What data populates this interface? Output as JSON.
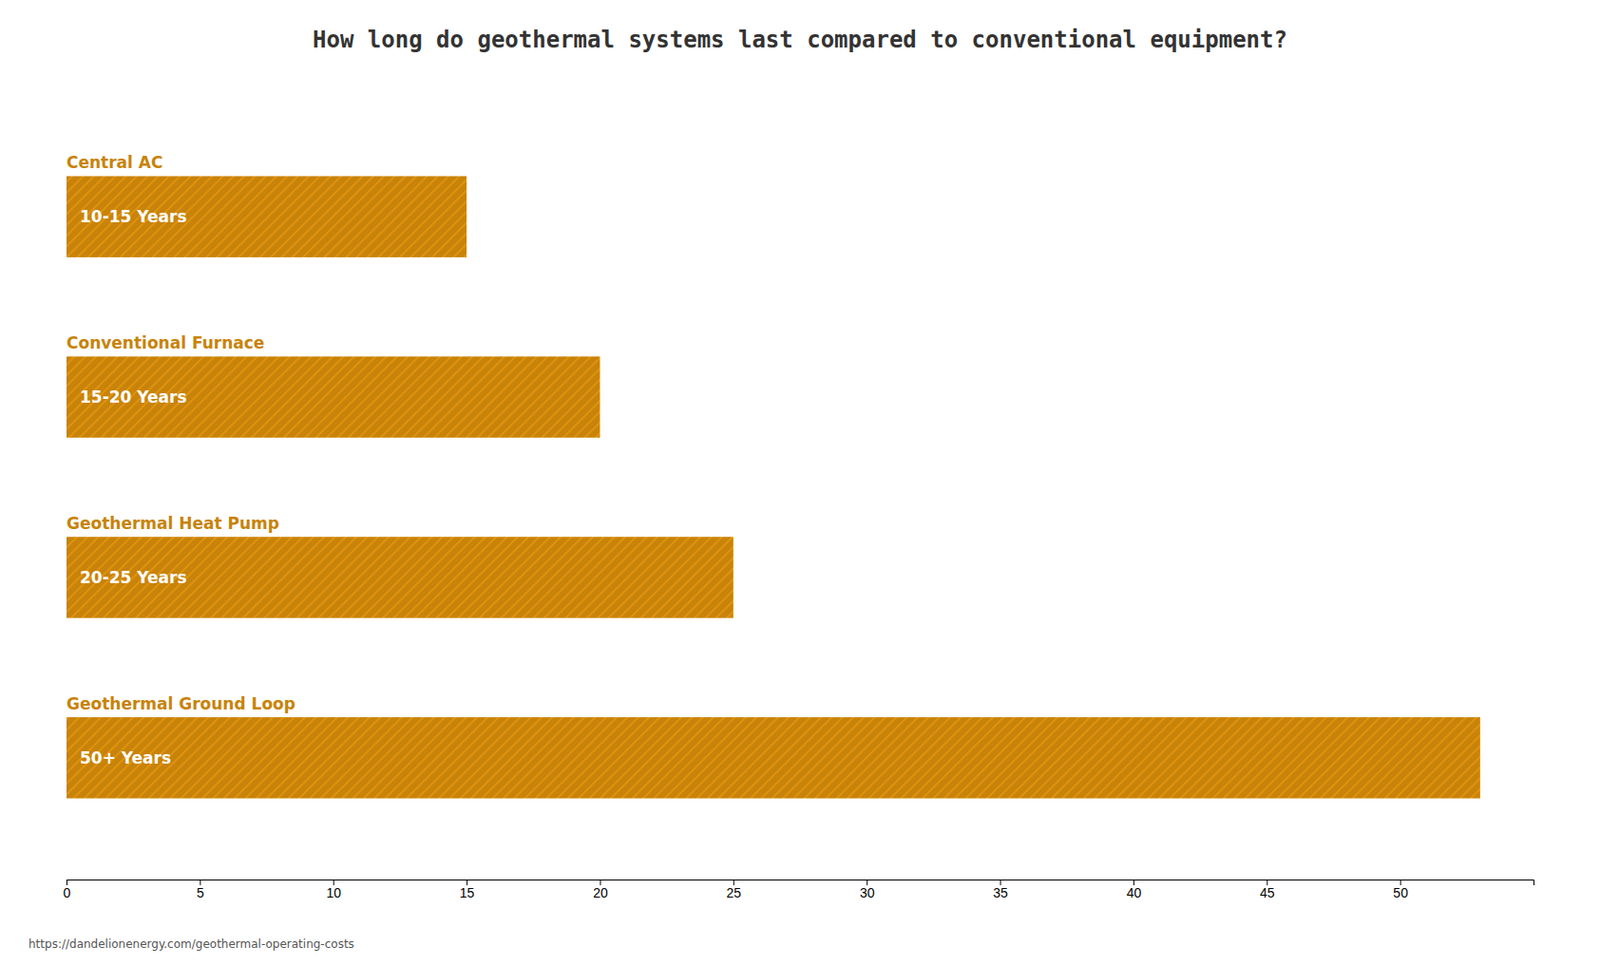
{
  "chart_data": {
    "type": "bar",
    "orientation": "horizontal",
    "title": "How long do geothermal systems last compared to conventional equipment?",
    "categories": [
      "Central AC",
      "Conventional Furnace",
      "Geothermal Heat Pump",
      "Geothermal Ground Loop"
    ],
    "values": [
      15,
      20,
      25,
      53
    ],
    "value_labels": [
      "10-15 Years",
      "15-20 Years",
      "20-25 Years",
      "50+ Years"
    ],
    "data_labels": true,
    "color": "#C8830A",
    "xlim": [
      0,
      55
    ],
    "xticks": [
      0,
      5,
      10,
      15,
      20,
      25,
      30,
      35,
      40,
      45,
      50
    ],
    "grid": false,
    "tick_labels": "x",
    "annotations": [
      "https://dandelionenergy.com/geothermal-operating-costs"
    ]
  }
}
